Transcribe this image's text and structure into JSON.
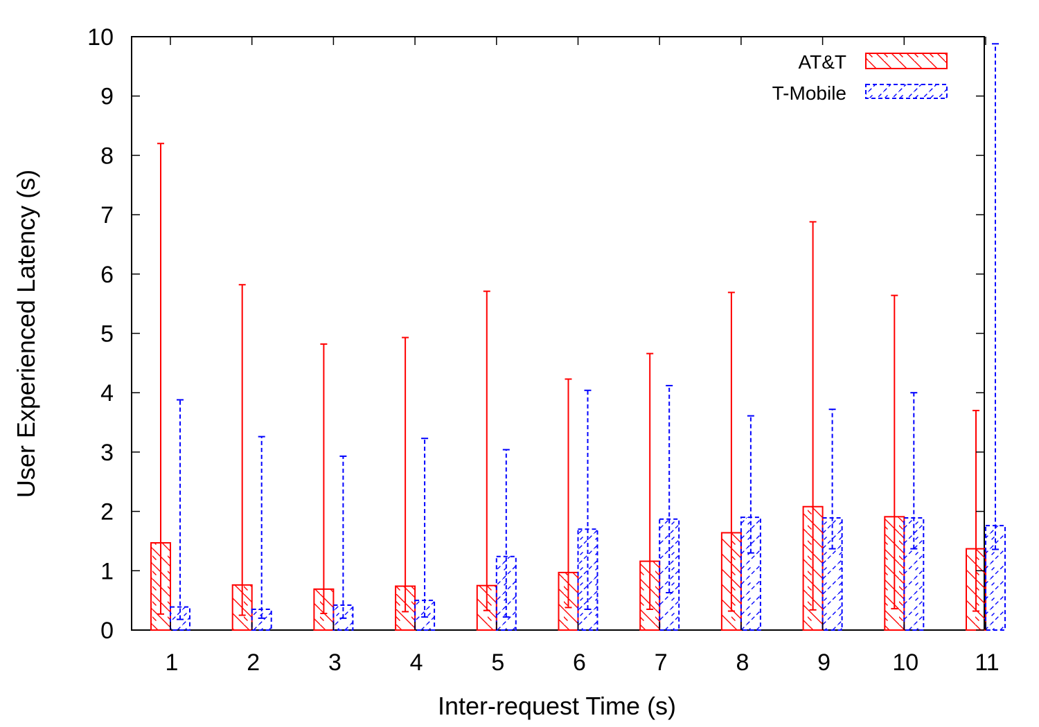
{
  "chart_data": {
    "type": "bar",
    "xlabel": "Inter-request Time (s)",
    "ylabel": "User Experienced Latency (s)",
    "ylim": [
      0,
      10
    ],
    "yticks": [
      "0",
      "1",
      "2",
      "3",
      "4",
      "5",
      "6",
      "7",
      "8",
      "9",
      "10"
    ],
    "categories": [
      "1",
      "2",
      "3",
      "4",
      "5",
      "6",
      "7",
      "8",
      "9",
      "10",
      "11"
    ],
    "grid": false,
    "legend_position": "top-right",
    "series": [
      {
        "name": "AT&T",
        "color": "#ff0000",
        "pattern": "hatch-backslash",
        "line_style": "solid",
        "values": [
          1.47,
          0.76,
          0.69,
          0.74,
          0.75,
          0.97,
          1.16,
          1.64,
          2.08,
          1.91,
          1.37
        ],
        "error_low": [
          0.27,
          0.25,
          0.28,
          0.31,
          0.33,
          0.38,
          0.35,
          0.32,
          0.34,
          0.36,
          0.32
        ],
        "error_high": [
          8.2,
          5.82,
          4.82,
          4.93,
          5.71,
          4.23,
          4.66,
          5.69,
          6.88,
          5.64,
          3.7
        ]
      },
      {
        "name": "T-Mobile",
        "color": "#0000ff",
        "pattern": "hatch-slash",
        "line_style": "dashed",
        "values": [
          0.39,
          0.35,
          0.42,
          0.5,
          1.24,
          1.7,
          1.87,
          1.9,
          1.89,
          1.89,
          1.76
        ],
        "error_low": [
          0.18,
          0.2,
          0.2,
          0.22,
          0.22,
          0.35,
          0.63,
          1.3,
          1.37,
          1.37,
          1.36
        ],
        "error_high": [
          3.88,
          3.26,
          2.93,
          3.23,
          3.04,
          4.04,
          4.12,
          3.61,
          3.72,
          4.0,
          9.88
        ]
      }
    ]
  }
}
